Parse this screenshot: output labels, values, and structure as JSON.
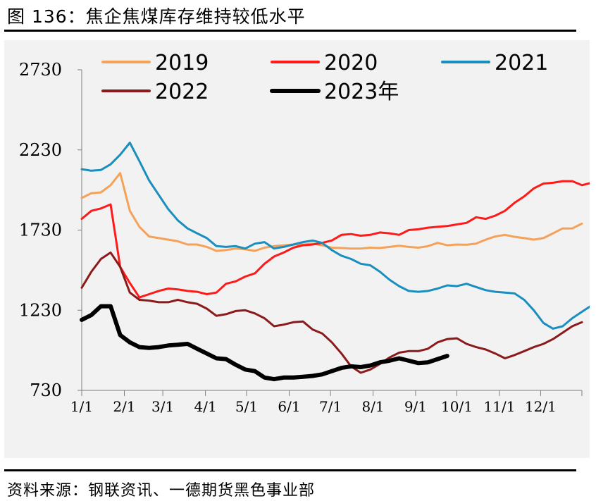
{
  "title": "图 136：焦企焦煤库存维持较低水平",
  "source": "资料来源：钢联资讯、一德期货黑色事业部",
  "chart_data": {
    "type": "line",
    "title": "焦企焦煤库存维持较低水平",
    "xlabel": "",
    "ylabel": "",
    "ylim": [
      730,
      2730
    ],
    "yticks": [
      730,
      1230,
      1730,
      2230,
      2730
    ],
    "xlim": [
      1,
      53
    ],
    "xticks": [
      {
        "label": "1/1",
        "week": 1
      },
      {
        "label": "2/1",
        "week": 5.43
      },
      {
        "label": "3/1",
        "week": 9.43
      },
      {
        "label": "4/1",
        "week": 13.86
      },
      {
        "label": "5/1",
        "week": 18.14
      },
      {
        "label": "6/1",
        "week": 22.57
      },
      {
        "label": "7/1",
        "week": 26.86
      },
      {
        "label": "8/1",
        "week": 31.29
      },
      {
        "label": "9/1",
        "week": 35.71
      },
      {
        "label": "10/1",
        "week": 40
      },
      {
        "label": "11/1",
        "week": 44.43
      },
      {
        "label": "12/1",
        "week": 48.71
      }
    ],
    "series": [
      {
        "name": "2019",
        "color": "#f4a259",
        "width": 3,
        "values": [
          1930,
          1960,
          1965,
          2010,
          2085,
          1850,
          1750,
          1690,
          1680,
          1670,
          1660,
          1640,
          1640,
          1625,
          1600,
          1605,
          1615,
          1610,
          1600,
          1620,
          1630,
          1635,
          1640,
          1640,
          1645,
          1635,
          1620,
          1618,
          1615,
          1615,
          1620,
          1618,
          1625,
          1632,
          1625,
          1620,
          1630,
          1650,
          1635,
          1640,
          1638,
          1645,
          1670,
          1690,
          1700,
          1688,
          1680,
          1670,
          1680,
          1710,
          1740,
          1740,
          1770
        ]
      },
      {
        "name": "2020",
        "color": "#ff1a1a",
        "width": 3,
        "values": [
          1800,
          1850,
          1865,
          1890,
          1500,
          1400,
          1310,
          1330,
          1350,
          1365,
          1360,
          1350,
          1345,
          1330,
          1340,
          1395,
          1410,
          1440,
          1460,
          1520,
          1565,
          1590,
          1620,
          1635,
          1640,
          1650,
          1665,
          1700,
          1705,
          1695,
          1700,
          1715,
          1710,
          1700,
          1730,
          1735,
          1745,
          1750,
          1755,
          1765,
          1775,
          1810,
          1800,
          1820,
          1850,
          1900,
          1940,
          1990,
          2020,
          2025,
          2035,
          2035,
          2010,
          2025
        ]
      },
      {
        "name": "2021",
        "color": "#1a8fbf",
        "width": 3,
        "values": [
          2110,
          2100,
          2105,
          2140,
          2200,
          2275,
          2160,
          2040,
          1950,
          1860,
          1790,
          1740,
          1710,
          1680,
          1630,
          1625,
          1630,
          1615,
          1645,
          1655,
          1615,
          1625,
          1640,
          1655,
          1665,
          1650,
          1605,
          1570,
          1550,
          1520,
          1510,
          1470,
          1420,
          1380,
          1350,
          1345,
          1350,
          1365,
          1385,
          1380,
          1395,
          1375,
          1355,
          1345,
          1340,
          1335,
          1295,
          1230,
          1150,
          1115,
          1130,
          1180,
          1220,
          1260,
          1295
        ]
      },
      {
        "name": "2022",
        "color": "#8b1a1a",
        "width": 3,
        "values": [
          1370,
          1470,
          1550,
          1590,
          1500,
          1340,
          1295,
          1290,
          1280,
          1280,
          1295,
          1280,
          1270,
          1240,
          1195,
          1205,
          1225,
          1230,
          1210,
          1180,
          1130,
          1140,
          1155,
          1160,
          1110,
          1085,
          1030,
          960,
          880,
          840,
          860,
          895,
          935,
          965,
          975,
          975,
          990,
          1030,
          1050,
          1055,
          1020,
          1000,
          985,
          960,
          930,
          950,
          975,
          1000,
          1020,
          1050,
          1090,
          1130,
          1155
        ]
      },
      {
        "name": "2023年",
        "color": "#000000",
        "width": 6,
        "values": [
          1170,
          1200,
          1255,
          1255,
          1075,
          1030,
          1000,
          995,
          1000,
          1010,
          1015,
          1020,
          990,
          960,
          930,
          925,
          890,
          860,
          850,
          810,
          800,
          810,
          810,
          815,
          820,
          830,
          850,
          870,
          880,
          875,
          885,
          905,
          915,
          930,
          915,
          900,
          905,
          925,
          945
        ]
      }
    ]
  }
}
